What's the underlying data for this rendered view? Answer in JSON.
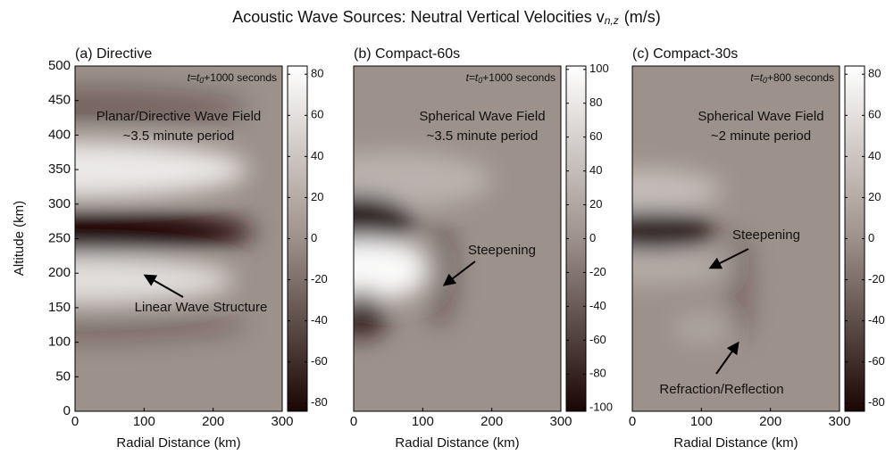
{
  "title": {
    "text": "Acoustic Wave Sources: Neutral Vertical Velocities v",
    "subscript": "n,z",
    "units": "(m/s)"
  },
  "chart_data": [
    {
      "type": "heatmap",
      "title": "(a) Directive",
      "xlabel": "Radial Distance (km)",
      "ylabel": "Altitude (km)",
      "xlim": [
        0,
        300
      ],
      "ylim": [
        0,
        500
      ],
      "xticks": [
        0,
        100,
        200,
        300
      ],
      "yticks": [
        0,
        50,
        100,
        150,
        200,
        250,
        300,
        350,
        400,
        450,
        500
      ],
      "clim": [
        -84,
        84
      ],
      "cticks": [
        -80,
        -60,
        -40,
        -20,
        0,
        20,
        40,
        60,
        80
      ],
      "colormap": [
        "#1a0604",
        "#9d918b",
        "#ffffff"
      ],
      "time_label": {
        "text": "t=t",
        "subscript": "0",
        "suffix": "+1000 seconds"
      },
      "annotations": [
        "Planar/Directive Wave Field",
        "~3.5 minute period",
        "Linear Wave Structure"
      ]
    },
    {
      "type": "heatmap",
      "title": "(b) Compact-60s",
      "xlabel": "Radial Distance (km)",
      "xlim": [
        0,
        300
      ],
      "ylim": [
        0,
        500
      ],
      "xticks": [
        0,
        100,
        200,
        300
      ],
      "clim": [
        -102,
        102
      ],
      "cticks": [
        -100,
        -80,
        -60,
        -40,
        -20,
        0,
        20,
        40,
        60,
        80,
        100
      ],
      "colormap": [
        "#1a0604",
        "#9d918b",
        "#ffffff"
      ],
      "time_label": {
        "text": "t=t",
        "subscript": "0",
        "suffix": "+1000 seconds"
      },
      "annotations": [
        "Spherical Wave Field",
        "~3.5 minute period",
        "Steepening"
      ]
    },
    {
      "type": "heatmap",
      "title": "(c) Compact-30s",
      "xlabel": "Radial Distance (km)",
      "xlim": [
        0,
        300
      ],
      "ylim": [
        0,
        500
      ],
      "xticks": [
        0,
        100,
        200,
        300
      ],
      "clim": [
        -84,
        84
      ],
      "cticks": [
        -80,
        -60,
        -40,
        -20,
        0,
        20,
        40,
        60,
        80
      ],
      "colormap": [
        "#1a0604",
        "#9d918b",
        "#ffffff"
      ],
      "time_label": {
        "text": "t=t",
        "subscript": "0",
        "suffix": "+800 seconds"
      },
      "annotations": [
        "Spherical Wave Field",
        "~2 minute period",
        "Steepening",
        "Refraction/Reflection"
      ]
    }
  ]
}
